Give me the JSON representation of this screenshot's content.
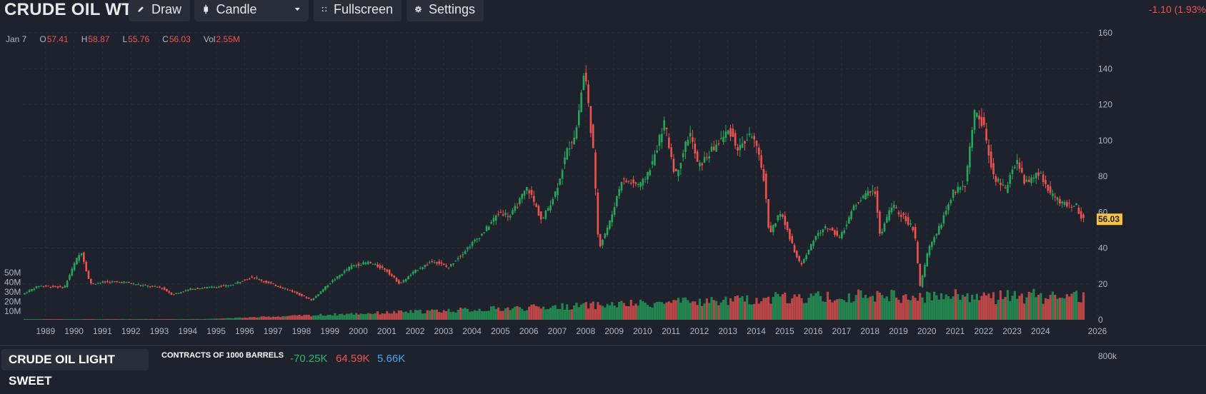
{
  "header": {
    "title": "CRUDE OIL WTI",
    "draw_label": "Draw",
    "charttype_label": "Candle",
    "fullscreen_label": "Fullscreen",
    "settings_label": "Settings",
    "change_text": "-1.10 (1.93%"
  },
  "ohlc": {
    "date": "Jan 7",
    "o_label": "O",
    "o": "57.41",
    "h_label": "H",
    "h": "58.87",
    "l_label": "L",
    "l": "55.76",
    "c_label": "C",
    "c": "56.03",
    "vol_label": "Vol",
    "vol": "2.55M"
  },
  "bottom_panel": {
    "title": "CRUDE OIL LIGHT SWEET",
    "subtitle": "CONTRACTS OF 1000 BARRELS",
    "value1": "-70.25K",
    "value2": "64.59K",
    "value3": "5.66K",
    "axis_label": "800k"
  },
  "colors": {
    "background": "#1e222d",
    "up": "#26a65b",
    "down": "#ef5350",
    "grid": "#2a2e39",
    "last_price_bg": "#f5c242"
  },
  "chart_data": {
    "type": "candlestick",
    "title": "CRUDE OIL WTI",
    "last_price": "56.03",
    "ylim": [
      0,
      160
    ],
    "yticks": [
      "160",
      "140",
      "120",
      "100",
      "80",
      "60",
      "40",
      "20",
      "0"
    ],
    "volume_ticks": [
      "50M",
      "40M",
      "30M",
      "20M",
      "10M"
    ],
    "x_ticks": [
      "1989",
      "1990",
      "1991",
      "1992",
      "1993",
      "1994",
      "1995",
      "1996",
      "1997",
      "1998",
      "1999",
      "2000",
      "2001",
      "2002",
      "2003",
      "2004",
      "2005",
      "2006",
      "2007",
      "2008",
      "2009",
      "2010",
      "2011",
      "2012",
      "2013",
      "2014",
      "2015",
      "2016",
      "2017",
      "2018",
      "2019",
      "2020",
      "2021",
      "2022",
      "2023",
      "2024",
      "2026"
    ],
    "price_path": [
      [
        1988.7,
        14
      ],
      [
        1989.3,
        19
      ],
      [
        1990.2,
        18
      ],
      [
        1990.6,
        33
      ],
      [
        1990.8,
        38
      ],
      [
        1991.1,
        20
      ],
      [
        1991.6,
        21
      ],
      [
        1992.3,
        21
      ],
      [
        1993.0,
        19
      ],
      [
        1993.6,
        18
      ],
      [
        1994.0,
        14
      ],
      [
        1994.6,
        17
      ],
      [
        1995.2,
        18
      ],
      [
        1996.0,
        19
      ],
      [
        1996.8,
        24
      ],
      [
        1997.3,
        21
      ],
      [
        1998.2,
        16
      ],
      [
        1998.9,
        11
      ],
      [
        1999.5,
        20
      ],
      [
        2000.3,
        30
      ],
      [
        2000.9,
        32
      ],
      [
        2001.5,
        28
      ],
      [
        2002.0,
        20
      ],
      [
        2002.6,
        28
      ],
      [
        2003.2,
        33
      ],
      [
        2003.7,
        29
      ],
      [
        2004.5,
        42
      ],
      [
        2004.9,
        48
      ],
      [
        2005.5,
        60
      ],
      [
        2005.9,
        58
      ],
      [
        2006.5,
        74
      ],
      [
        2007.0,
        55
      ],
      [
        2007.5,
        72
      ],
      [
        2007.9,
        95
      ],
      [
        2008.2,
        105
      ],
      [
        2008.5,
        140
      ],
      [
        2008.8,
        95
      ],
      [
        2009.0,
        40
      ],
      [
        2009.4,
        55
      ],
      [
        2009.8,
        78
      ],
      [
        2010.5,
        75
      ],
      [
        2010.9,
        88
      ],
      [
        2011.3,
        110
      ],
      [
        2011.7,
        80
      ],
      [
        2012.2,
        105
      ],
      [
        2012.5,
        85
      ],
      [
        2013.0,
        95
      ],
      [
        2013.6,
        106
      ],
      [
        2013.9,
        95
      ],
      [
        2014.4,
        104
      ],
      [
        2014.8,
        80
      ],
      [
        2015.0,
        48
      ],
      [
        2015.4,
        60
      ],
      [
        2015.9,
        38
      ],
      [
        2016.1,
        30
      ],
      [
        2016.6,
        46
      ],
      [
        2017.0,
        52
      ],
      [
        2017.5,
        46
      ],
      [
        2018.0,
        64
      ],
      [
        2018.7,
        74
      ],
      [
        2018.9,
        46
      ],
      [
        2019.3,
        64
      ],
      [
        2019.8,
        56
      ],
      [
        2020.1,
        50
      ],
      [
        2020.3,
        18
      ],
      [
        2020.6,
        40
      ],
      [
        2021.0,
        52
      ],
      [
        2021.5,
        72
      ],
      [
        2021.9,
        76
      ],
      [
        2022.2,
        115
      ],
      [
        2022.5,
        110
      ],
      [
        2022.9,
        80
      ],
      [
        2023.3,
        72
      ],
      [
        2023.7,
        90
      ],
      [
        2024.0,
        76
      ],
      [
        2024.5,
        82
      ],
      [
        2024.9,
        70
      ],
      [
        2025.4,
        64
      ],
      [
        2025.8,
        64
      ],
      [
        2026.0,
        56
      ]
    ]
  }
}
